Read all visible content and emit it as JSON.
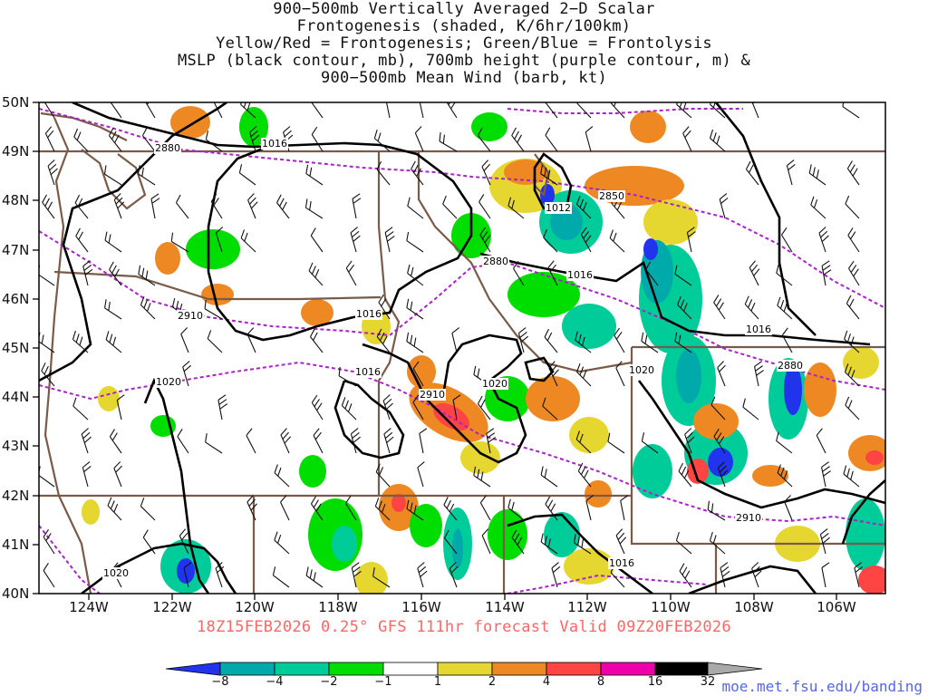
{
  "title": {
    "line1": "900−500mb Vertically Averaged 2−D Scalar",
    "line2": "Frontogenesis (shaded, K/6hr/100km)",
    "line3": "Yellow/Red = Frontogenesis;  Green/Blue = Frontolysis",
    "line4": "MSLP (black contour, mb), 700mb height (purple contour, m) &",
    "line5": "900−500mb Mean Wind (barb, kt)"
  },
  "lat_labels": [
    "50N",
    "49N",
    "48N",
    "47N",
    "46N",
    "45N",
    "44N",
    "43N",
    "42N",
    "41N",
    "40N"
  ],
  "lon_labels": [
    "124W",
    "122W",
    "120W",
    "118W",
    "116W",
    "114W",
    "112W",
    "110W",
    "108W",
    "106W"
  ],
  "contour_labels": {
    "mslp": [
      "1016",
      "1012",
      "1016",
      "1016",
      "1016",
      "1016",
      "1020",
      "1020",
      "1020",
      "1016",
      "1020"
    ],
    "height": [
      "2880",
      "2850",
      "2880",
      "2910",
      "2910",
      "2880",
      "2910"
    ]
  },
  "footer": "18Z15FEB2026 0.25° GFS 111hr forecast Valid 09Z20FEB2026",
  "credit": "moe.met.fsu.edu/banding",
  "colorbar": {
    "labels": [
      "−8",
      "−4",
      "−2",
      "−1",
      "1",
      "2",
      "4",
      "8",
      "16",
      "32"
    ],
    "colors": [
      "#2233ee",
      "#00aaaa",
      "#00cc99",
      "#00dd00",
      "#ffffff",
      "#e6d630",
      "#ee8822",
      "#ff4444",
      "#ee00aa",
      "#000000",
      "#a9a9a9"
    ]
  },
  "colors": {
    "mslp": "#000000",
    "height": "#aa22cc",
    "border": "#7a5a48",
    "footer": "#ff6666",
    "credit": "#5566ee"
  }
}
